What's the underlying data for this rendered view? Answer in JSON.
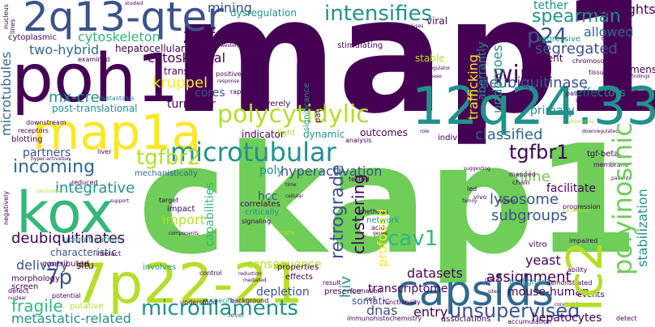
{
  "palette": {
    "dark_purple": "#440154",
    "indigo": "#3b528b",
    "blue": "#31688e",
    "teal": "#21918c",
    "green": "#35b779",
    "light_green": "#6ece58",
    "lime": "#b5de2b",
    "yellow": "#fde725"
  },
  "words": {
    "map1": "map1",
    "ckap1": "ckap1",
    "poh1": "poh1",
    "q13qter": "2q13-qter",
    "p22": "7p22-21",
    "q2433": "12q24.33",
    "map1a": "map1a",
    "kox": "kox",
    "capsids": "capsids",
    "microtubular": "microtubular",
    "polycytidylic": "polycytidylic",
    "intensifies": "intensifies",
    "microfilaments": "microfilaments",
    "lc2": "lc2",
    "polyinosinic": "polyinosinic",
    "wire": "wire",
    "incoming": "incoming",
    "deubiquitinase": "deubiquitinase",
    "unsupervised": "unsupervised",
    "znf": "znf",
    "p24": "p24",
    "tgfbr1": "tgfbr1",
    "tgfbr2": "tgfbr2",
    "mining": "mining",
    "cytoskeleton": "cytoskeleton",
    "cytoskeletal": "cytoskeletal",
    "kruppel": "kruppel",
    "spearman": "spearman",
    "segregated": "segregated",
    "tether": "tether",
    "allowed": "allowed",
    "highlights": "highlights",
    "cav1": "cav1",
    "integrative": "integrative",
    "deubiquitinates": "deubiquitinates",
    "fragile": "fragile",
    "metastatic_related": "metastatic-related",
    "p7": "7p",
    "lysosome": "lysosome",
    "subgroups": "subgroups",
    "assignment": "assignment",
    "hyperactivation": "hyperactivation",
    "microtubules": "microtubules",
    "two_hybrid": "two-hybrid",
    "mx_cre": "mx-cre",
    "post_translational": "post-translational",
    "cores": "cores",
    "turnover": "turnover",
    "retrograde": "retrograde",
    "clustering": "clustering",
    "online": "online",
    "hcc": "hcc",
    "import": "import",
    "datasets": "datasets",
    "transcriptome": "transcriptome",
    "dnas": "dnas",
    "entry": "entry",
    "yeast": "yeast",
    "delivery": "delivery",
    "partners": "partners",
    "poly": "poly",
    "classified": "classified",
    "undergoes": "undergoes",
    "infectivity": "infectivity",
    "trafficking": "trafficking",
    "aberrantly": "aberrantly",
    "dysregulation": "dysregulation",
    "nucleus": "nucleus",
    "lines": "lines",
    "hepatocytes": "hepatocytes",
    "mouse_human": "mouse-human",
    "facilitate": "facilitate",
    "capabilities": "capabilities",
    "consequence": "consequence",
    "depletion": "depletion",
    "hiv": "hiv",
    "profound": "profound",
    "stabilization": "stabilization",
    "primary": "primary",
    "effectors": "effectors",
    "aggressive": "aggressive",
    "efficient": "efficient",
    "tgf_beta": "tgf-beta",
    "specimens": "specimens",
    "transport": "transport",
    "hepatocellular": "hepatocellular",
    "stable": "stable",
    "pathway_mediated": "pathway-mediated",
    "stimulating": "stimulating",
    "significance": "significance",
    "viral": "viral",
    "macrophages": "macrophages",
    "analyses": "analyses",
    "studied": "studied",
    "cytoplasmic": "cytoplasmic",
    "examined": "examined",
    "metastasis": "metastasis",
    "downstream": "downstream",
    "receptors": "receptors",
    "blotting": "blotting",
    "liver": "liver",
    "reduced": "reduced",
    "carcinoma": "carcinoma",
    "negatively": "negatively",
    "support": "support",
    "target": "target",
    "impact": "impact",
    "critically": "critically",
    "signaling": "signaling",
    "methods": "methods",
    "network": "network",
    "acid": "acid",
    "genes": "genes",
    "mice": "mice",
    "components": "components",
    "ubiquitination": "ubiquitination",
    "characteristic": "characteristic",
    "contributed": "contributed",
    "situ": "situ",
    "interact": "interact",
    "involves": "involves",
    "morphology": "morphology",
    "screen": "screen",
    "putative": "putative",
    "potential": "potential",
    "defect": "defect",
    "nuclear": "nuclear",
    "understood": "understood",
    "specific": "specific",
    "background": "background",
    "level": "level",
    "effects": "effects",
    "control": "control",
    "properties": "properties",
    "result": "result",
    "presence": "presence",
    "formation": "formation",
    "cell": "cell",
    "immunohistochemistry": "immunohistochemistry",
    "somatic": "somatic",
    "associations": "associations",
    "accumulation": "accumulation",
    "malignant": "malignant",
    "demonstrated": "demonstrated",
    "events": "events",
    "sites": "sites",
    "vitro": "vitro",
    "impaired": "impaired",
    "detect": "detect",
    "data": "data",
    "ability": "ability",
    "outcomes": "outcomes",
    "individual": "individual",
    "indicator": "indicator",
    "light": "light",
    "dynamic": "dynamic",
    "analysis": "analysis",
    "role": "role",
    "functionally": "functionally",
    "chromosomes": "chromosomes",
    "treated": "treated",
    "tissues": "tissues",
    "pathological": "pathological",
    "findings": "findings",
    "survival": "survival",
    "promoting": "promoting",
    "mapped": "mapped",
    "chain": "chain",
    "led": "led",
    "vivo": "vivo",
    "regions": "regions",
    "family": "family",
    "suggesting": "suggesting",
    "downregulated": "downregulated",
    "membrane": "membrane",
    "patients": "patients",
    "progression": "progression",
    "localization": "localization",
    "conclusion": "conclusion",
    "regulator": "regulator",
    "disease": "disease",
    "positively": "positively",
    "response": "response",
    "western": "western",
    "rapid": "rapid",
    "severely": "severely",
    "mechanistically": "mechanistically",
    "correlates": "correlates",
    "cellular": "cellular",
    "tested": "tested",
    "time": "time",
    "hyper_activation": "hyper-activation",
    "reduction": "reduction",
    "mediated": "mediated"
  }
}
